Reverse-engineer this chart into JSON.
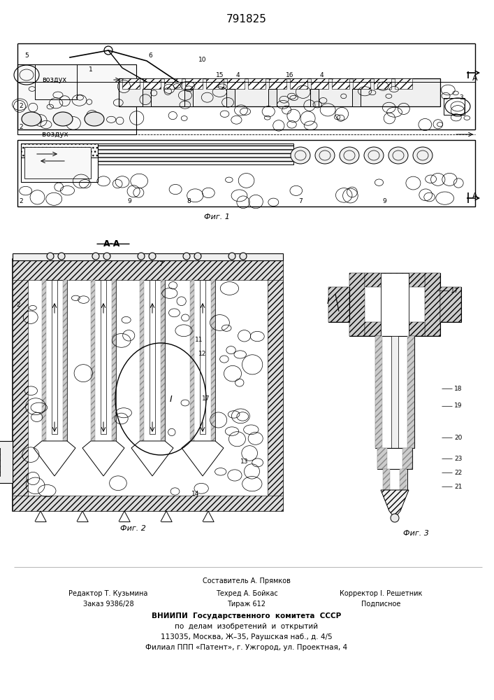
{
  "bg_color": "#ffffff",
  "patent_number": "791825",
  "fig1_caption": "Фиг. 1",
  "fig2_caption": "Фиг. 2",
  "fig3_caption": "Фиг. 3",
  "aa_label": "А-А",
  "vozdukh": "воздух",
  "footer_col1": [
    "Редактор Т. Кузьмина",
    "Заказ 9386/28"
  ],
  "footer_col2": [
    "Техред А. Бойкас",
    "Тираж 612"
  ],
  "footer_col3": [
    "Корректор I. Решетник",
    "Подписное"
  ],
  "footer_top": "Составитель А. Прямков",
  "footer_vnipi1": "ВНИИПИ  Государственного  комитета  СССР",
  "footer_vnipi2": "по  делам  изобретений  и  открытий",
  "footer_addr1": "113035, Москва, Ж–35, Раушская наб., д. 4/5",
  "footer_addr2": "Филиал ППП «Патент», г. Ужгород, ул. Проектная, 4"
}
